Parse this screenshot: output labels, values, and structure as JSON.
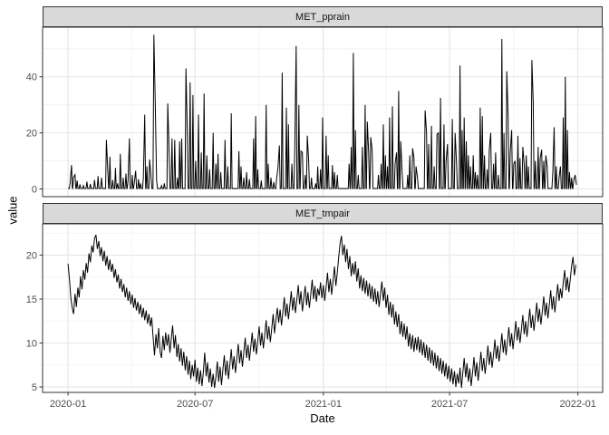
{
  "figure": {
    "axis": {
      "x_label": "Date",
      "y_label": "value"
    },
    "x_axis": {
      "domain_days": [
        -36.5,
        766.5
      ],
      "tick_days": [
        0,
        182,
        366,
        547,
        731
      ],
      "tick_labels": [
        "2020-01",
        "2020-07",
        "2021-01",
        "2021-07",
        "2022-01"
      ],
      "minor_days": [
        91,
        274,
        456,
        639
      ]
    },
    "colors": {
      "background": "#ffffff",
      "strip_fill": "#d9d9d9",
      "strip_border": "#333333",
      "panel_border": "#333333",
      "grid_major": "#e5e5e5",
      "grid_minor": "#f0f0f0",
      "series_line": "#000000",
      "tick_mark": "#333333",
      "tick_text": "#4d4d4d",
      "title_text": "#000000"
    }
  },
  "chart_data": [
    {
      "type": "line",
      "title": "MET_pprain",
      "legend": "none",
      "grid": "on",
      "x_unit": "days since 2020-01-01",
      "ylim": [
        -2.75,
        57.7
      ],
      "y_ticks": [
        0,
        20,
        40
      ],
      "y_minor": [
        10,
        30,
        50
      ],
      "representation": "rain event spikes [day, value]; value ~0 between events",
      "events": [
        [
          3,
          2.2
        ],
        [
          5,
          8.5
        ],
        [
          8,
          4.2
        ],
        [
          10,
          5.1
        ],
        [
          13,
          3.0
        ],
        [
          17,
          1.6
        ],
        [
          22,
          1.2
        ],
        [
          27,
          2.6
        ],
        [
          32,
          1.8
        ],
        [
          38,
          3.2
        ],
        [
          43,
          4.6
        ],
        [
          48,
          4.0
        ],
        [
          55,
          17.5
        ],
        [
          57,
          6.0
        ],
        [
          60,
          11.5
        ],
        [
          64,
          3.2
        ],
        [
          68,
          7.5
        ],
        [
          71,
          2.0
        ],
        [
          75,
          12.5
        ],
        [
          79,
          4.0
        ],
        [
          83,
          5.5
        ],
        [
          86,
          3.0
        ],
        [
          88,
          18.0
        ],
        [
          92,
          5.0
        ],
        [
          95,
          2.2
        ],
        [
          97,
          6.5
        ],
        [
          101,
          3.5
        ],
        [
          104,
          2.0
        ],
        [
          108,
          4.0
        ],
        [
          110,
          26.5
        ],
        [
          113,
          8.0
        ],
        [
          117,
          10.5
        ],
        [
          119,
          4.0
        ],
        [
          123,
          55.0
        ],
        [
          125,
          31.0
        ],
        [
          127,
          3.0
        ],
        [
          134,
          1.2
        ],
        [
          138,
          2.0
        ],
        [
          143,
          30.5
        ],
        [
          145,
          12.0
        ],
        [
          149,
          18.0
        ],
        [
          153,
          17.5
        ],
        [
          157,
          4.0
        ],
        [
          160,
          17.0
        ],
        [
          163,
          18.0
        ],
        [
          169,
          43.0
        ],
        [
          171,
          20.0
        ],
        [
          175,
          38.0
        ],
        [
          179,
          33.5
        ],
        [
          183,
          10.0
        ],
        [
          187,
          26.5
        ],
        [
          191,
          13.0
        ],
        [
          195,
          34.0
        ],
        [
          199,
          12.0
        ],
        [
          203,
          7.0
        ],
        [
          208,
          20.0
        ],
        [
          212,
          9.0
        ],
        [
          215,
          12.5
        ],
        [
          219,
          6.0
        ],
        [
          225,
          17.5
        ],
        [
          229,
          8.0
        ],
        [
          234,
          27.0
        ],
        [
          245,
          13.5
        ],
        [
          248,
          8.0
        ],
        [
          252,
          4.0
        ],
        [
          256,
          6.0
        ],
        [
          260,
          3.5
        ],
        [
          266,
          18.0
        ],
        [
          269,
          26.0
        ],
        [
          272,
          7.0
        ],
        [
          277,
          3.0
        ],
        [
          284,
          30.0
        ],
        [
          287,
          9.0
        ],
        [
          291,
          4.0
        ],
        [
          295,
          2.5
        ],
        [
          299,
          3.5
        ],
        [
          301,
          7.5
        ],
        [
          303,
          15.5
        ],
        [
          307,
          41.5
        ],
        [
          313,
          29.0
        ],
        [
          316,
          23.0
        ],
        [
          321,
          9.0
        ],
        [
          325,
          13.0
        ],
        [
          327,
          51.0
        ],
        [
          331,
          30.0
        ],
        [
          334,
          13.5
        ],
        [
          336,
          13.0
        ],
        [
          340,
          5.0
        ],
        [
          343,
          19.0
        ],
        [
          345,
          10.0
        ],
        [
          349,
          4.0
        ],
        [
          355,
          2.0
        ],
        [
          358,
          8.0
        ],
        [
          362,
          7.0
        ],
        [
          365,
          25.5
        ],
        [
          370,
          19.0
        ],
        [
          373,
          12.0
        ],
        [
          379,
          8.5
        ],
        [
          382,
          6.0
        ],
        [
          386,
          5.0
        ],
        [
          403,
          9.0
        ],
        [
          406,
          15.0
        ],
        [
          409,
          48.5
        ],
        [
          412,
          21.0
        ],
        [
          416,
          5.0
        ],
        [
          422,
          15.0
        ],
        [
          426,
          30.0
        ],
        [
          429,
          24.0
        ],
        [
          431,
          13.0
        ],
        [
          434,
          18.5
        ],
        [
          436,
          14.0
        ],
        [
          445,
          5.0
        ],
        [
          449,
          9.0
        ],
        [
          452,
          23.0
        ],
        [
          455,
          12.0
        ],
        [
          458,
          8.0
        ],
        [
          461,
          25.5
        ],
        [
          465,
          29.5
        ],
        [
          469,
          9.0
        ],
        [
          471,
          13.0
        ],
        [
          474,
          35.0
        ],
        [
          477,
          17.0
        ],
        [
          479,
          6.0
        ],
        [
          487,
          5.0
        ],
        [
          490,
          12.0
        ],
        [
          494,
          14.5
        ],
        [
          496,
          11.0
        ],
        [
          499,
          8.0
        ],
        [
          501,
          4.0
        ],
        [
          512,
          28.0
        ],
        [
          514,
          20.0
        ],
        [
          517,
          16.0
        ],
        [
          521,
          22.5
        ],
        [
          525,
          8.0
        ],
        [
          529,
          19.5
        ],
        [
          531,
          20.0
        ],
        [
          534,
          32.5
        ],
        [
          539,
          23.0
        ],
        [
          542,
          10.0
        ],
        [
          544,
          16.0
        ],
        [
          551,
          25.0
        ],
        [
          555,
          20.0
        ],
        [
          557,
          9.0
        ],
        [
          562,
          44.0
        ],
        [
          565,
          21.0
        ],
        [
          568,
          25.5
        ],
        [
          571,
          17.0
        ],
        [
          574,
          12.0
        ],
        [
          577,
          8.0
        ],
        [
          581,
          12.0
        ],
        [
          584,
          6.0
        ],
        [
          587,
          5.0
        ],
        [
          591,
          29.0
        ],
        [
          594,
          26.0
        ],
        [
          597,
          12.0
        ],
        [
          601,
          7.0
        ],
        [
          604,
          14.0
        ],
        [
          606,
          20.0
        ],
        [
          610,
          9.0
        ],
        [
          613,
          13.0
        ],
        [
          617,
          5.0
        ],
        [
          622,
          53.5
        ],
        [
          625,
          20.0
        ],
        [
          629,
          42.0
        ],
        [
          631,
          25.5
        ],
        [
          634,
          13.0
        ],
        [
          636,
          21.0
        ],
        [
          639,
          9.0
        ],
        [
          641,
          10.0
        ],
        [
          645,
          19.0
        ],
        [
          648,
          11.0
        ],
        [
          652,
          15.0
        ],
        [
          654,
          9.0
        ],
        [
          657,
          12.0
        ],
        [
          660,
          8.0
        ],
        [
          665,
          46.0
        ],
        [
          667,
          31.0
        ],
        [
          670,
          10.0
        ],
        [
          674,
          15.0
        ],
        [
          677,
          11.0
        ],
        [
          679,
          14.0
        ],
        [
          682,
          10.0
        ],
        [
          685,
          12.0
        ],
        [
          687,
          8.0
        ],
        [
          695,
          6.0
        ],
        [
          697,
          22.0
        ],
        [
          700,
          8.0
        ],
        [
          704,
          4.0
        ],
        [
          706,
          8.0
        ],
        [
          710,
          25.5
        ],
        [
          713,
          40.0
        ],
        [
          716,
          21.0
        ],
        [
          719,
          6.0
        ],
        [
          722,
          4.0
        ],
        [
          725,
          3.0
        ],
        [
          727,
          5.0
        ],
        [
          729,
          1.5
        ]
      ]
    },
    {
      "type": "line",
      "title": "MET_tmpair",
      "legend": "none",
      "grid": "on",
      "x_unit": "days since 2020-01-01",
      "ylim": [
        4.38,
        23.56
      ],
      "y_ticks": [
        5,
        10,
        15,
        20
      ],
      "y_minor": [
        7.5,
        12.5,
        17.5,
        22.5
      ],
      "representation": "daily air temperature sampled every 2 days",
      "start_day": 0,
      "step_days": 2,
      "values": [
        19.0,
        17.3,
        15.1,
        14.0,
        13.3,
        15.6,
        14.1,
        16.3,
        15.2,
        17.6,
        16.1,
        18.3,
        17.2,
        19.1,
        18.0,
        20.2,
        19.2,
        21.1,
        20.3,
        21.9,
        22.3,
        20.7,
        21.6,
        19.9,
        20.9,
        19.3,
        20.5,
        18.8,
        19.9,
        18.3,
        19.5,
        18.1,
        19.0,
        17.4,
        18.4,
        16.9,
        17.8,
        16.2,
        17.3,
        15.8,
        16.7,
        15.2,
        16.3,
        14.8,
        15.9,
        14.4,
        15.5,
        14.0,
        15.1,
        13.7,
        14.7,
        13.3,
        14.4,
        12.9,
        14.0,
        12.6,
        13.7,
        12.2,
        13.3,
        11.9,
        12.9,
        10.6,
        8.6,
        11.0,
        9.4,
        11.7,
        9.0,
        8.3,
        10.8,
        9.2,
        11.2,
        9.7,
        11.0,
        8.9,
        10.5,
        12.0,
        9.4,
        10.9,
        8.4,
        9.9,
        7.9,
        9.4,
        7.4,
        9.0,
        6.9,
        8.5,
        6.4,
        8.0,
        5.9,
        7.5,
        6.2,
        8.1,
        5.6,
        7.2,
        5.3,
        6.9,
        5.1,
        6.7,
        8.9,
        6.2,
        7.8,
        5.5,
        7.1,
        5.0,
        6.5,
        4.9,
        6.1,
        7.9,
        5.6,
        7.3,
        5.2,
        6.9,
        8.6,
        6.3,
        8.0,
        5.9,
        7.5,
        9.3,
        7.0,
        8.5,
        6.6,
        8.2,
        9.9,
        7.7,
        9.2,
        7.3,
        8.9,
        10.6,
        8.3,
        9.8,
        8.0,
        9.5,
        11.2,
        9.0,
        10.5,
        8.7,
        10.2,
        11.9,
        9.7,
        11.2,
        9.4,
        10.9,
        12.6,
        10.4,
        11.9,
        10.1,
        11.6,
        13.3,
        11.1,
        12.6,
        14.0,
        12.3,
        13.8,
        12.0,
        13.5,
        15.2,
        13.0,
        14.5,
        12.7,
        14.2,
        15.9,
        13.7,
        15.2,
        13.4,
        14.9,
        16.6,
        14.4,
        15.9,
        13.6,
        15.1,
        16.5,
        14.3,
        15.8,
        14.0,
        15.5,
        17.2,
        15.0,
        16.5,
        14.7,
        16.2,
        15.4,
        16.9,
        15.1,
        16.6,
        14.8,
        16.3,
        18.0,
        15.8,
        17.3,
        15.5,
        17.0,
        18.7,
        16.5,
        18.0,
        19.7,
        21.3,
        22.2,
        20.0,
        21.2,
        19.2,
        20.7,
        18.4,
        19.9,
        17.6,
        19.1,
        17.8,
        19.3,
        17.0,
        18.5,
        16.2,
        17.7,
        15.9,
        17.4,
        15.6,
        17.1,
        15.3,
        16.8,
        15.0,
        16.5,
        14.7,
        16.2,
        14.4,
        15.9,
        14.1,
        15.6,
        17.0,
        14.8,
        16.3,
        14.0,
        15.5,
        13.2,
        14.7,
        12.9,
        14.4,
        12.1,
        13.6,
        11.8,
        13.3,
        11.0,
        12.5,
        10.7,
        12.2,
        10.4,
        11.9,
        9.6,
        11.1,
        9.3,
        10.9,
        9.0,
        10.6,
        9.2,
        10.7,
        8.9,
        10.4,
        8.6,
        10.1,
        8.3,
        9.8,
        8.0,
        9.5,
        7.7,
        9.2,
        7.4,
        8.9,
        7.1,
        8.6,
        6.8,
        8.3,
        6.5,
        8.0,
        6.2,
        7.7,
        5.9,
        7.4,
        5.6,
        7.1,
        5.3,
        6.8,
        5.0,
        6.5,
        5.4,
        7.2,
        4.9,
        6.6,
        8.3,
        6.1,
        7.7,
        5.6,
        7.1,
        5.1,
        6.7,
        8.4,
        6.2,
        7.8,
        5.7,
        7.3,
        9.0,
        6.8,
        8.3,
        6.5,
        8.0,
        9.7,
        7.5,
        9.0,
        7.2,
        8.7,
        10.4,
        8.2,
        9.7,
        7.9,
        9.4,
        11.1,
        8.9,
        10.4,
        8.6,
        10.1,
        11.8,
        9.6,
        11.1,
        9.3,
        10.8,
        12.5,
        10.3,
        11.8,
        10.0,
        11.5,
        13.2,
        11.0,
        12.5,
        10.7,
        12.2,
        13.9,
        11.7,
        13.2,
        11.4,
        12.9,
        14.6,
        12.4,
        13.9,
        12.1,
        13.6,
        15.3,
        13.1,
        14.6,
        12.8,
        14.3,
        16.0,
        13.8,
        15.3,
        13.5,
        15.0,
        16.7,
        14.8,
        16.2,
        15.1,
        16.9,
        18.3,
        16.0,
        17.5,
        15.8,
        17.2,
        18.8,
        19.8,
        17.7,
        18.9
      ]
    }
  ]
}
